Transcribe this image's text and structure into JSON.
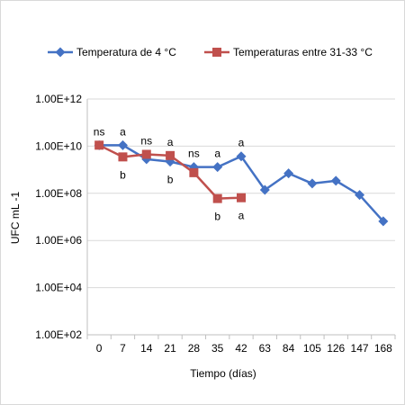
{
  "chart_data": {
    "type": "line",
    "title": "",
    "xlabel": "Tiempo (días)",
    "ylabel": "UFC mL -1",
    "y_scale": "log",
    "ylim": [
      100,
      1000000000000
    ],
    "y_ticks": [
      "1.00E+02",
      "1.00E+04",
      "1.00E+06",
      "1.00E+08",
      "1.00E+10",
      "1.00E+12"
    ],
    "categories": [
      "0",
      "7",
      "14",
      "21",
      "28",
      "35",
      "42",
      "63",
      "84",
      "105",
      "126",
      "147",
      "168"
    ],
    "grid": "horizontal",
    "legend_position": "top",
    "series": [
      {
        "name": "Temperatura de 4 °C",
        "color": "#4472C4",
        "marker": "diamond",
        "values": [
          11000000000,
          11000000000,
          2800000000,
          2200000000,
          1300000000,
          1300000000,
          3700000000,
          140000000,
          700000000,
          260000000,
          340000000,
          85000000,
          6500000
        ]
      },
      {
        "name": "Temperaturas entre 31-33 °C",
        "color": "#C0504D",
        "marker": "square",
        "values": [
          11000000000,
          3500000000,
          4500000000,
          4000000000,
          750000000,
          60000000,
          65000000,
          null,
          null,
          null,
          null,
          null,
          null
        ]
      }
    ],
    "annotations": [
      {
        "category": "0",
        "text": "ns",
        "position": "above"
      },
      {
        "category": "7",
        "text": "a",
        "position": "above"
      },
      {
        "category": "7",
        "text": "b",
        "position": "below"
      },
      {
        "category": "14",
        "text": "ns",
        "position": "above"
      },
      {
        "category": "21",
        "text": "a",
        "position": "above"
      },
      {
        "category": "21",
        "text": "b",
        "position": "below"
      },
      {
        "category": "28",
        "text": "ns",
        "position": "above"
      },
      {
        "category": "35",
        "text": "a",
        "position": "above"
      },
      {
        "category": "35",
        "text": "b",
        "position": "below"
      },
      {
        "category": "42",
        "text": "a",
        "position": "above"
      },
      {
        "category": "42",
        "text": "a",
        "position": "below"
      }
    ]
  }
}
